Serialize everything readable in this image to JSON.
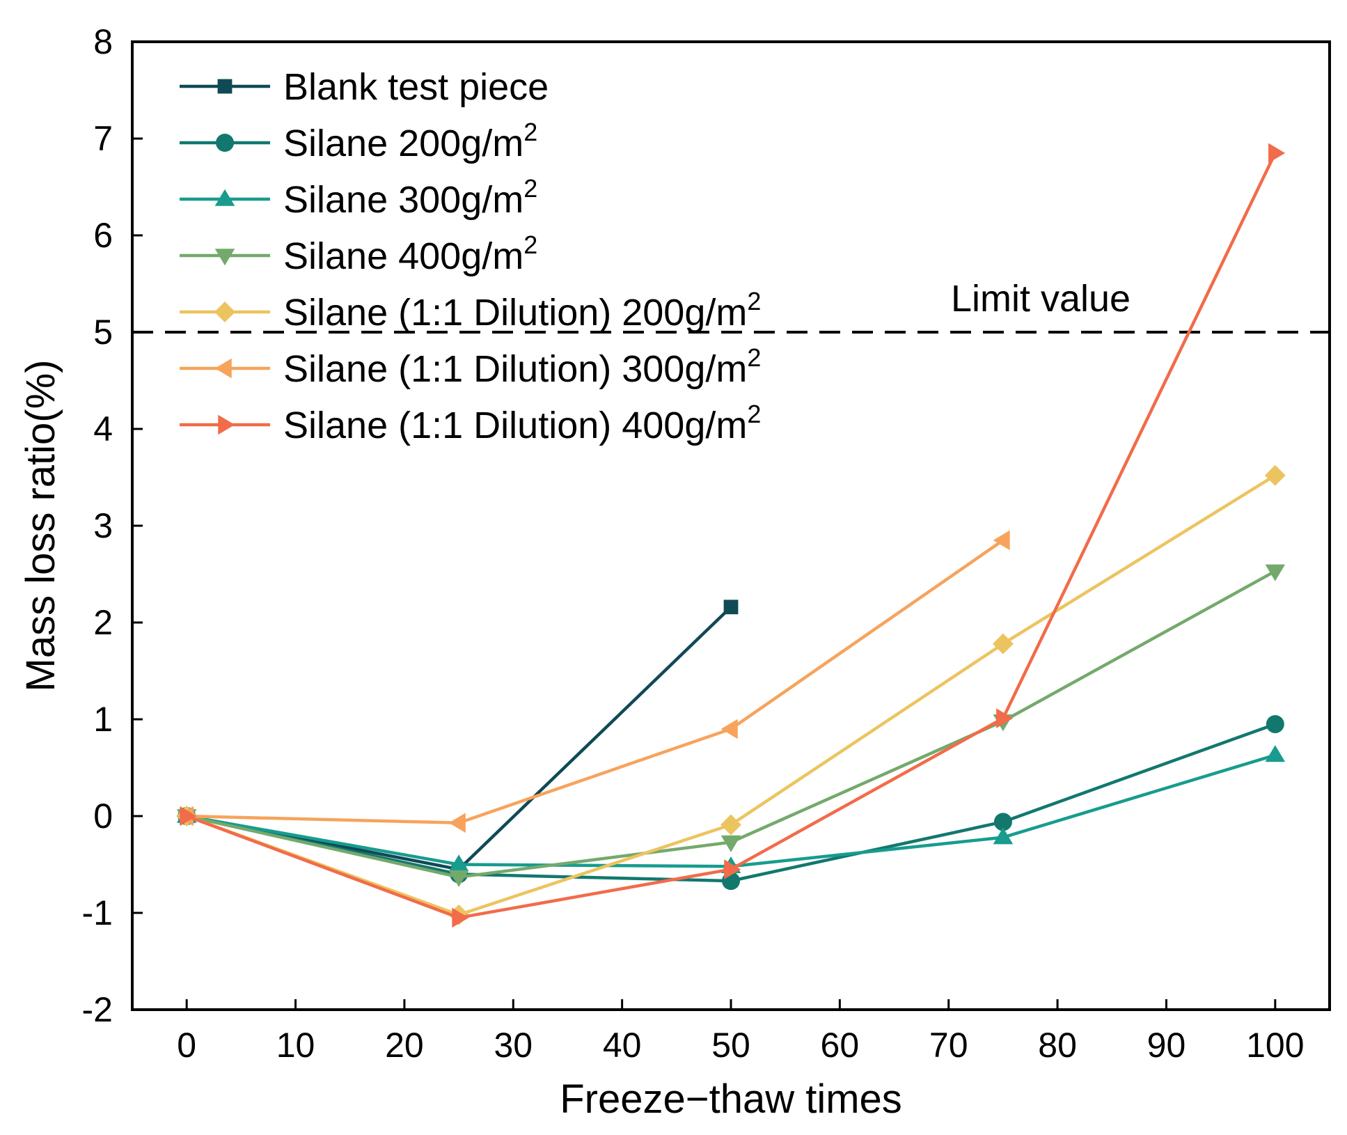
{
  "chart_data": {
    "type": "line",
    "title": "",
    "xlabel": "Freeze−thaw times",
    "ylabel": "Mass loss ratio(%)",
    "xlim": [
      -5,
      105
    ],
    "ylim": [
      -2,
      8
    ],
    "xticks": [
      0,
      10,
      20,
      30,
      40,
      50,
      60,
      70,
      80,
      90,
      100
    ],
    "yticks": [
      -2,
      -1,
      0,
      1,
      2,
      3,
      4,
      5,
      6,
      7,
      8
    ],
    "legend_position": "top-left",
    "series": [
      {
        "name": "Blank test piece",
        "legend_main": "Blank test piece",
        "legend_sup": "",
        "marker": "square",
        "color": "#0f4a55",
        "x": [
          0,
          25,
          50
        ],
        "y": [
          0,
          -0.55,
          2.16
        ]
      },
      {
        "name": "Silane 200g/m2",
        "legend_main": "Silane 200g/m",
        "legend_sup": "2",
        "marker": "circle",
        "color": "#12786e",
        "x": [
          0,
          25,
          50,
          75,
          100
        ],
        "y": [
          0,
          -0.6,
          -0.67,
          -0.06,
          0.95
        ]
      },
      {
        "name": "Silane 300g/m2",
        "legend_main": "Silane 300g/m",
        "legend_sup": "2",
        "marker": "triangle-up",
        "color": "#179c8e",
        "x": [
          0,
          25,
          50,
          75,
          100
        ],
        "y": [
          0,
          -0.5,
          -0.52,
          -0.22,
          0.63
        ]
      },
      {
        "name": "Silane 400g/m2",
        "legend_main": "Silane 400g/m",
        "legend_sup": "2",
        "marker": "triangle-down",
        "color": "#74a96c",
        "x": [
          0,
          25,
          50,
          75,
          100
        ],
        "y": [
          0,
          -0.63,
          -0.27,
          0.98,
          2.53
        ]
      },
      {
        "name": "Silane (1:1 Dilution) 200g/m2",
        "legend_main": "Silane (1:1 Dilution) 200g/m",
        "legend_sup": "2",
        "marker": "diamond",
        "color": "#ecc45f",
        "x": [
          0,
          25,
          50,
          75,
          100
        ],
        "y": [
          0,
          -1.02,
          -0.09,
          1.78,
          3.52
        ]
      },
      {
        "name": "Silane (1:1 Dilution) 300g/m2",
        "legend_main": "Silane (1:1 Dilution) 300g/m",
        "legend_sup": "2",
        "marker": "triangle-left",
        "color": "#f7a35c",
        "x": [
          0,
          25,
          50,
          75
        ],
        "y": [
          0,
          -0.07,
          0.9,
          2.85
        ]
      },
      {
        "name": "Silane (1:1 Dilution) 400g/m2",
        "legend_main": "Silane (1:1 Dilution) 400g/m",
        "legend_sup": "2",
        "marker": "triangle-right",
        "color": "#f26b4a",
        "x": [
          0,
          25,
          50,
          75,
          100
        ],
        "y": [
          0,
          -1.05,
          -0.55,
          1.01,
          6.85
        ]
      }
    ],
    "reference_line": {
      "y": 5,
      "label": "Limit value",
      "style": "dashed",
      "color": "#000000"
    }
  }
}
